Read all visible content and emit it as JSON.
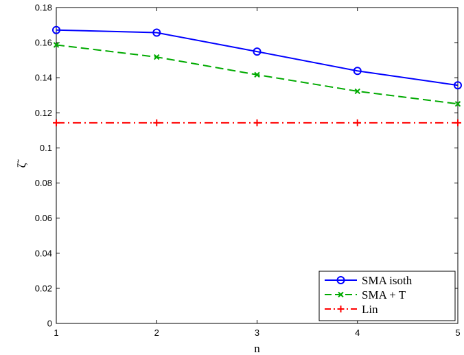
{
  "chart_data": {
    "type": "line",
    "xlabel": "n",
    "ylabel": "ζ̃",
    "xlim": [
      1,
      5
    ],
    "ylim": [
      0,
      0.18
    ],
    "x_ticks": [
      "1",
      "2",
      "3",
      "4",
      "5"
    ],
    "y_ticks": [
      "0",
      "0.02",
      "0.04",
      "0.06",
      "0.08",
      "0.1",
      "0.12",
      "0.14",
      "0.16",
      "0.18"
    ],
    "grid": false,
    "legend_position": "bottom-right",
    "x": [
      1,
      2,
      3,
      4,
      5
    ],
    "series": [
      {
        "name": "SMA isoth",
        "values": [
          0.1672,
          0.1657,
          0.1549,
          0.1439,
          0.1357
        ],
        "color": "#0000ff",
        "marker": "circle",
        "line_style": "solid"
      },
      {
        "name": "SMA + T",
        "values": [
          0.1587,
          0.1518,
          0.1417,
          0.1323,
          0.1251
        ],
        "color": "#00aa00",
        "marker": "x",
        "line_style": "dashed"
      },
      {
        "name": "Lin",
        "values": [
          0.1143,
          0.1143,
          0.1143,
          0.1143,
          0.1143
        ],
        "color": "#ff0000",
        "marker": "plus",
        "line_style": "dash-dot"
      }
    ]
  }
}
